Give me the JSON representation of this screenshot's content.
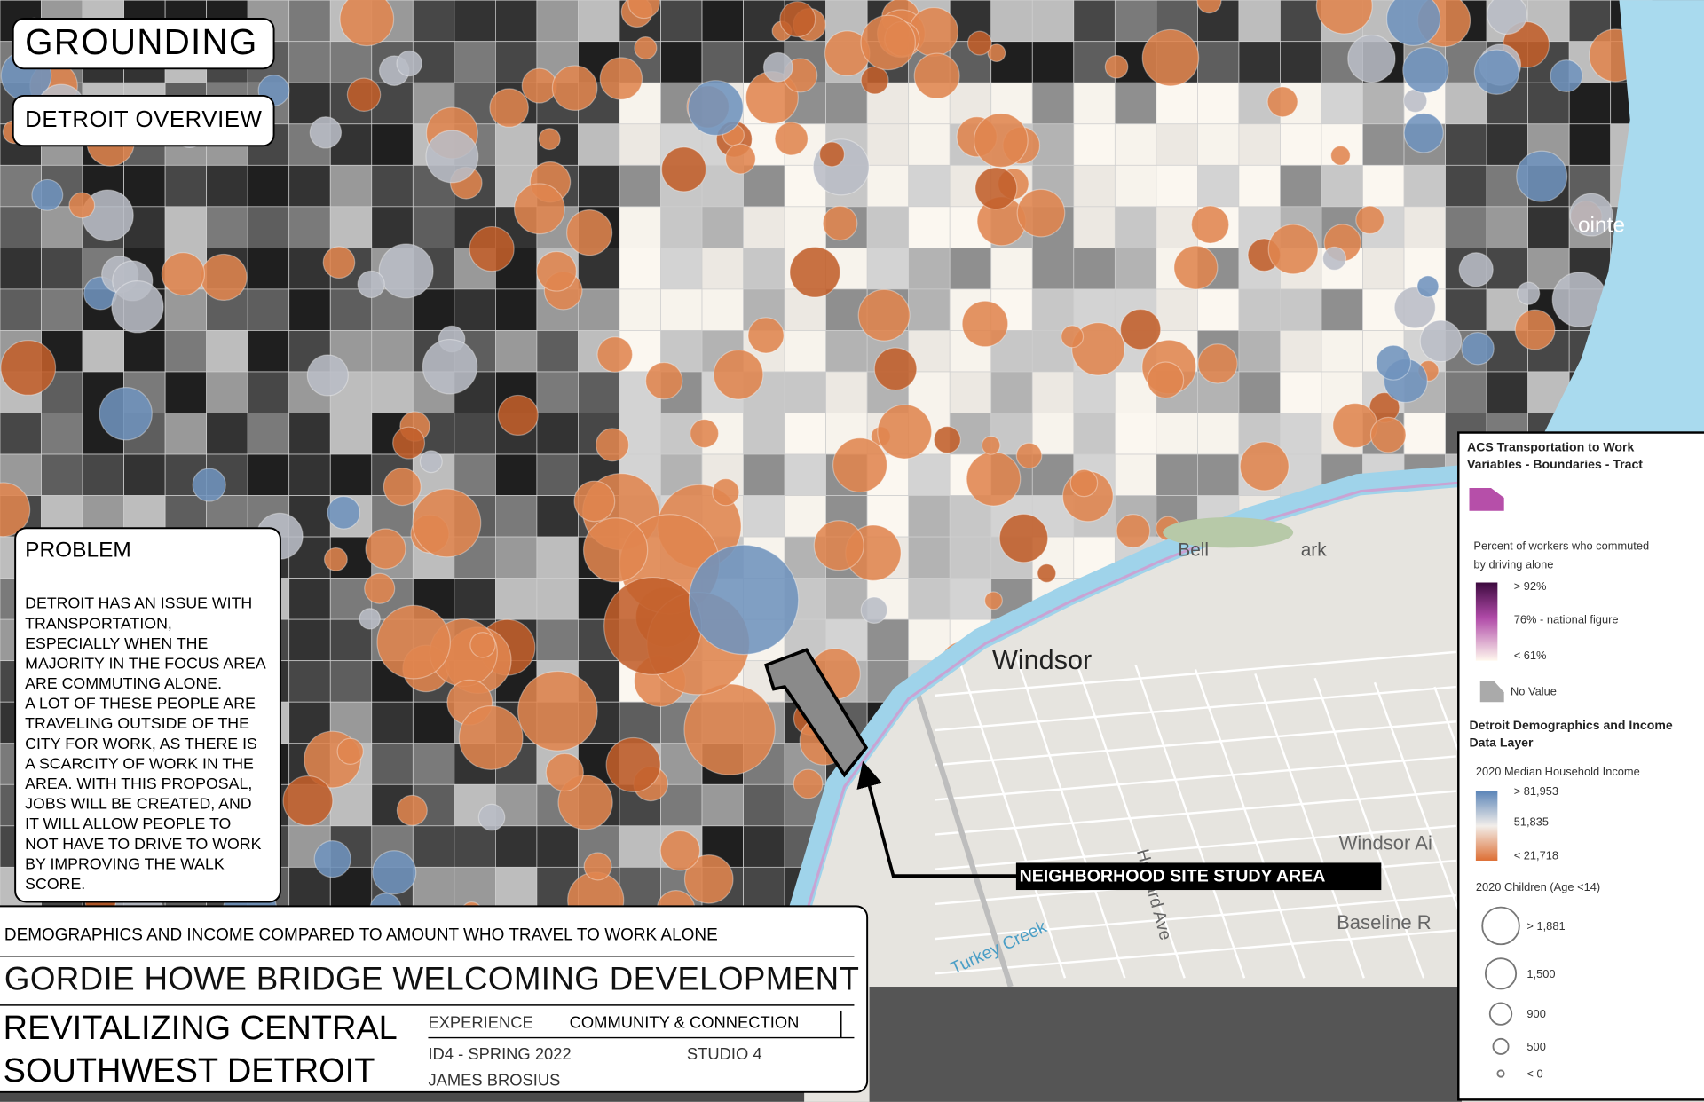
{
  "header": {
    "title": "GROUNDING",
    "subtitle": "DETROIT OVERVIEW"
  },
  "problem": {
    "heading": "PROBLEM",
    "lines": [
      "DETROIT HAS AN ISSUE WITH",
      "TRANSPORTATION,",
      "ESPECIALLY WHEN THE",
      "MAJORITY IN THE FOCUS AREA",
      "ARE COMMUTING ALONE.",
      "A LOT OF THESE PEOPLE ARE",
      "TRAVELING OUTSIDE OF THE",
      "CITY FOR WORK, AS THERE IS",
      "A SCARCITY OF WORK IN THE",
      "AREA. WITH THIS PROPOSAL,",
      "JOBS WILL BE CREATED, AND",
      "IT WILL ALLOW PEOPLE TO",
      "NOT HAVE TO DRIVE TO WORK",
      "BY IMPROVING THE WALK",
      "SCORE."
    ]
  },
  "map_labels": {
    "windsor": "Windsor",
    "windsor_airport": "Windsor Ai",
    "baseline": "Baseline R",
    "turkey_creek": "Turkey Creek",
    "howard_ave": "Howard Ave",
    "belle_isle_left": "Bell",
    "belle_isle_right": "ark",
    "pointe": "ointe"
  },
  "callout": "NEIGHBORHOOD SITE STUDY AREA",
  "legend": {
    "layer1_title": [
      "ACS Transportation to Work",
      "Variables - Boundaries - Tract"
    ],
    "commute_title": [
      "Percent of workers who commuted",
      "by driving alone"
    ],
    "commute_stops": [
      "> 92%",
      "76% - national figure",
      "< 61%"
    ],
    "no_value": "No Value",
    "layer2_title": [
      "Detroit Demographics and Income",
      "Data Layer"
    ],
    "income_title": "2020 Median Household Income",
    "income_stops": [
      "> 81,953",
      "51,835",
      "< 21,718"
    ],
    "children_title": "2020 Children (Age <14)",
    "children_sizes": [
      "> 1,881",
      "1,500",
      "900",
      "500",
      "< 0"
    ]
  },
  "title_block": {
    "caption": "DEMOGRAPHICS AND INCOME COMPARED TO AMOUNT WHO TRAVEL TO WORK ALONE",
    "project": "GORDIE HOWE BRIDGE WELCOMING DEVELOPMENT",
    "name_lines": [
      "REVITALIZING CENTRAL",
      "SOUTHWEST DETROIT"
    ],
    "experience_label": "EXPERIENCE",
    "experience": "COMMUNITY & CONNECTION",
    "course": "ID4 - SPRING 2022",
    "studio": "STUDIO 4",
    "author": "JAMES BROSIUS"
  }
}
